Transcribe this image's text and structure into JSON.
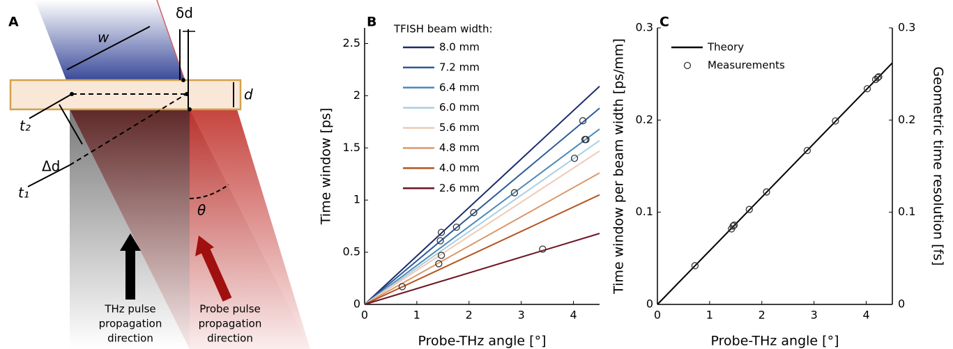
{
  "diagram": {
    "panel_label": "A",
    "w": "w",
    "delta_d_small": "δd",
    "d": "d",
    "t2": "t₂",
    "delta_d": "Δd",
    "t1": "t₁",
    "theta": "θ",
    "thz_caption": [
      "THz pulse",
      "propagation",
      "direction"
    ],
    "probe_caption": [
      "Probe pulse",
      "propagation",
      "direction"
    ]
  },
  "chart_data": [
    {
      "type": "line",
      "panel_label": "B",
      "xlabel": "Probe-THz angle [°]",
      "ylabel": "Time window [ps]",
      "xlim": [
        0,
        4.5
      ],
      "ylim": [
        0,
        2.65
      ],
      "xticks": [
        0,
        1,
        2,
        3,
        4
      ],
      "yticks": [
        0,
        0.5,
        1,
        1.5,
        2,
        2.5
      ],
      "legend_title": "TFISH beam width:",
      "legend": "upper left",
      "series": [
        {
          "name": "8.0 mm",
          "color": "#1b2a6b",
          "x": [
            0,
            4.5
          ],
          "values": [
            0,
            2.09
          ]
        },
        {
          "name": "7.2 mm",
          "color": "#2c5b96",
          "x": [
            0,
            4.5
          ],
          "values": [
            0,
            1.88
          ]
        },
        {
          "name": "6.4 mm",
          "color": "#4d89b9",
          "x": [
            0,
            4.5
          ],
          "values": [
            0,
            1.68
          ]
        },
        {
          "name": "6.0 mm",
          "color": "#abcfe2",
          "x": [
            0,
            4.5
          ],
          "values": [
            0,
            1.57
          ]
        },
        {
          "name": "5.6 mm",
          "color": "#efcab4",
          "x": [
            0,
            4.5
          ],
          "values": [
            0,
            1.47
          ]
        },
        {
          "name": "4.8 mm",
          "color": "#d9996c",
          "x": [
            0,
            4.5
          ],
          "values": [
            0,
            1.26
          ]
        },
        {
          "name": "4.0 mm",
          "color": "#b4551f",
          "x": [
            0,
            4.5
          ],
          "values": [
            0,
            1.05
          ]
        },
        {
          "name": "2.6 mm",
          "color": "#6b1522",
          "x": [
            0,
            4.5
          ],
          "values": [
            0,
            0.68
          ]
        }
      ],
      "markers": {
        "color": "#333333",
        "x": [
          0.72,
          1.42,
          1.47,
          1.45,
          1.47,
          1.76,
          2.09,
          2.87,
          3.41,
          4.02,
          4.18,
          4.22,
          4.24
        ],
        "values": [
          0.17,
          0.39,
          0.47,
          0.61,
          0.69,
          0.74,
          0.88,
          1.07,
          0.53,
          1.4,
          1.76,
          1.58,
          1.58
        ]
      }
    },
    {
      "type": "line",
      "panel_label": "C",
      "xlabel": "Probe-THz angle [°]",
      "ylabel": "Time window per beam width [ps/mm]",
      "y2label": "Geometric time resolution [fs]",
      "xlim": [
        0,
        4.5
      ],
      "ylim": [
        0,
        0.3
      ],
      "y2lim": [
        0,
        0.3
      ],
      "xticks": [
        0,
        1,
        2,
        3,
        4
      ],
      "yticks": [
        0,
        0.1,
        0.2,
        0.3
      ],
      "y2ticks": [
        0,
        0.1,
        0.2,
        0.3
      ],
      "legend": "upper left",
      "series": [
        {
          "name": "Theory",
          "kind": "line",
          "color": "#000000",
          "x": [
            0,
            4.5
          ],
          "values": [
            0,
            0.262
          ]
        },
        {
          "name": "Measurements",
          "kind": "scatter",
          "color": "#333333",
          "x": [
            0.72,
            1.42,
            1.45,
            1.47,
            1.76,
            2.09,
            2.87,
            3.41,
            4.02,
            4.18,
            4.22,
            4.24
          ],
          "values": [
            0.042,
            0.082,
            0.085,
            0.086,
            0.103,
            0.122,
            0.167,
            0.199,
            0.234,
            0.244,
            0.246,
            0.247
          ]
        }
      ]
    }
  ]
}
